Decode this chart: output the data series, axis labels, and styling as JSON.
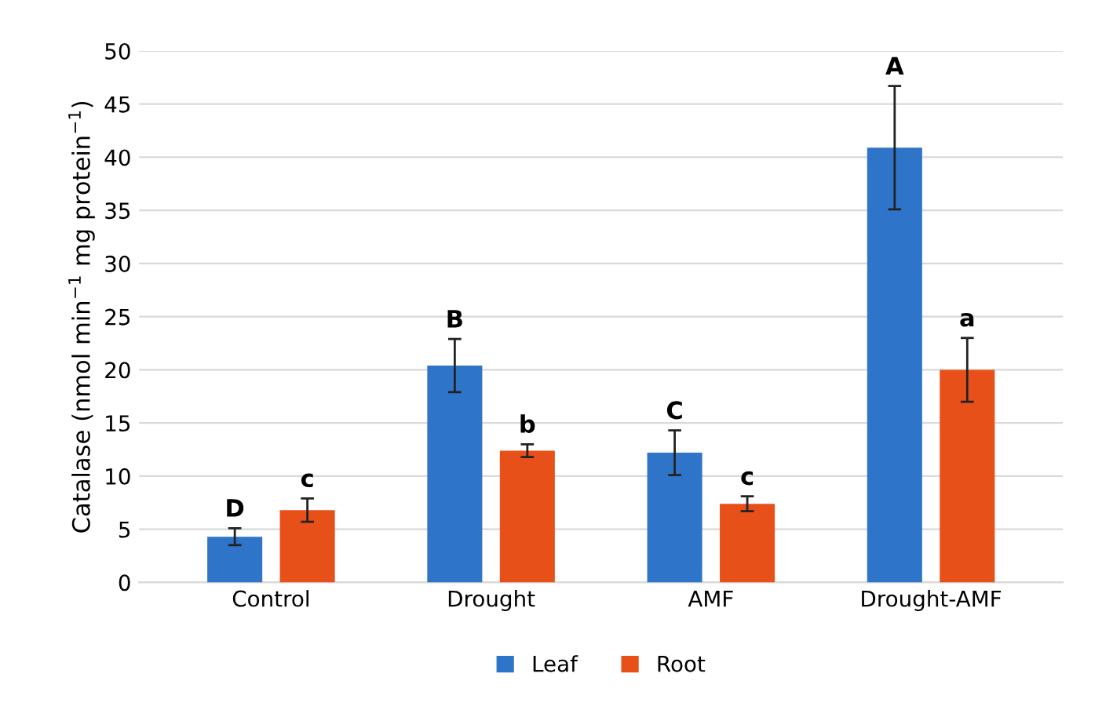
{
  "chart_data": {
    "type": "bar",
    "ylabel": "Catalase (nmol min$^{−1}$ mg protein$^{−1}$)",
    "categories": [
      "Control",
      "Drought",
      "AMF",
      "Drought-AMF"
    ],
    "series": [
      {
        "name": "Leaf",
        "color": "#2e75c9",
        "values": [
          4.3,
          20.4,
          12.2,
          40.9
        ],
        "errors": [
          0.8,
          2.5,
          2.1,
          5.8
        ]
      },
      {
        "name": "Root",
        "color": "#e8501a",
        "values": [
          6.8,
          12.4,
          7.4,
          20.0
        ],
        "errors": [
          1.1,
          0.6,
          0.7,
          3.0
        ]
      }
    ],
    "annotations": [
      "D",
      "c",
      "B",
      "b",
      "C",
      "c",
      "A",
      "a"
    ],
    "ylim": [
      0,
      50
    ],
    "yticks": [
      0,
      5,
      10,
      15,
      20,
      25,
      30,
      35,
      40,
      45,
      50
    ],
    "grid": "y",
    "legend": "bottom"
  }
}
